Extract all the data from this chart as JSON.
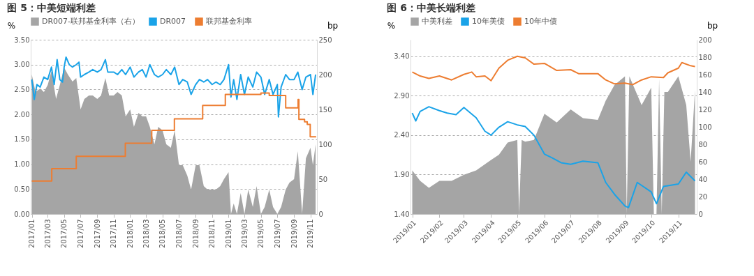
{
  "chart_data": [
    {
      "type": "line",
      "title": "图 5：中美短端利差",
      "ylabel": "%",
      "y2label": "bp",
      "legend": "top",
      "grid": "y",
      "xlim": [
        "2016-12-28",
        "2019-11-25"
      ],
      "xticks": [
        {
          "value": "2017-01-01",
          "label": "2017/01"
        },
        {
          "value": "2017-03-01",
          "label": "2017/03"
        },
        {
          "value": "2017-05-01",
          "label": "2017/05"
        },
        {
          "value": "2017-07-01",
          "label": "2017/07"
        },
        {
          "value": "2017-09-01",
          "label": "2017/09"
        },
        {
          "value": "2017-11-01",
          "label": "2017/11"
        },
        {
          "value": "2018-01-01",
          "label": "2018/01"
        },
        {
          "value": "2018-03-01",
          "label": "2018/03"
        },
        {
          "value": "2018-05-01",
          "label": "2018/05"
        },
        {
          "value": "2018-07-01",
          "label": "2018/07"
        },
        {
          "value": "2018-09-01",
          "label": "2018/09"
        },
        {
          "value": "2018-11-01",
          "label": "2018/11"
        },
        {
          "value": "2019-01-01",
          "label": "2019/01"
        },
        {
          "value": "2019-03-01",
          "label": "2019/03"
        },
        {
          "value": "2019-05-01",
          "label": "2019/05"
        },
        {
          "value": "2019-07-01",
          "label": "2019/07"
        },
        {
          "value": "2019-09-01",
          "label": "2019/09"
        },
        {
          "value": "2019-11-01",
          "label": "2019/11"
        }
      ],
      "ylim": [
        0,
        3.5
      ],
      "yticks": [
        {
          "value": 0,
          "label": "0.00"
        },
        {
          "value": 0.5,
          "label": "0.50"
        },
        {
          "value": 1,
          "label": "1.00"
        },
        {
          "value": 1.5,
          "label": "1.50"
        },
        {
          "value": 2,
          "label": "2.00"
        },
        {
          "value": 2.5,
          "label": "2.50"
        },
        {
          "value": 3,
          "label": "3.00"
        },
        {
          "value": 3.5,
          "label": "3.50"
        }
      ],
      "y2lim": [
        0,
        250
      ],
      "y2ticks": [
        0,
        50,
        100,
        150,
        200,
        250
      ],
      "series": [
        {
          "name": "DR007-联邦基金利率（右）",
          "type": "area",
          "axis": "y2",
          "color": "#a5a5a5",
          "x": [
            "2017-01-01",
            "2017-01-15",
            "2017-02-01",
            "2017-02-15",
            "2017-03-01",
            "2017-03-15",
            "2017-04-01",
            "2017-04-15",
            "2017-05-01",
            "2017-05-15",
            "2017-06-01",
            "2017-06-15",
            "2017-07-01",
            "2017-07-15",
            "2017-08-01",
            "2017-08-15",
            "2017-09-01",
            "2017-09-15",
            "2017-10-01",
            "2017-10-15",
            "2017-11-01",
            "2017-11-15",
            "2017-12-01",
            "2017-12-15",
            "2018-01-01",
            "2018-01-15",
            "2018-02-01",
            "2018-02-15",
            "2018-03-01",
            "2018-03-15",
            "2018-04-01",
            "2018-04-15",
            "2018-05-01",
            "2018-05-15",
            "2018-06-01",
            "2018-06-15",
            "2018-07-01",
            "2018-07-15",
            "2018-08-01",
            "2018-08-15",
            "2018-09-01",
            "2018-09-15",
            "2018-10-01",
            "2018-10-15",
            "2018-11-01",
            "2018-11-15",
            "2018-12-01",
            "2018-12-15",
            "2019-01-01",
            "2019-01-10",
            "2019-01-20",
            "2019-02-01",
            "2019-02-15",
            "2019-03-01",
            "2019-03-15",
            "2019-04-01",
            "2019-04-15",
            "2019-05-01",
            "2019-05-15",
            "2019-06-01",
            "2019-06-15",
            "2019-07-01",
            "2019-07-15",
            "2019-08-01",
            "2019-08-15",
            "2019-09-01",
            "2019-09-15",
            "2019-10-01",
            "2019-10-15",
            "2019-11-01",
            "2019-11-10",
            "2019-11-20"
          ],
          "values": [
            200,
            175,
            180,
            175,
            185,
            205,
            165,
            185,
            210,
            200,
            190,
            195,
            150,
            165,
            170,
            170,
            165,
            170,
            195,
            170,
            170,
            175,
            170,
            140,
            150,
            125,
            145,
            140,
            140,
            125,
            100,
            125,
            120,
            100,
            95,
            120,
            70,
            70,
            55,
            35,
            70,
            70,
            40,
            35,
            35,
            35,
            40,
            50,
            60,
            0,
            15,
            0,
            30,
            0,
            35,
            10,
            40,
            0,
            10,
            35,
            10,
            0,
            10,
            35,
            45,
            50,
            90,
            0,
            80,
            95,
            70,
            100
          ]
        },
        {
          "name": "DR007",
          "color": "#1aa3e8",
          "x": [
            "2017-01-01",
            "2017-01-10",
            "2017-01-20",
            "2017-02-01",
            "2017-02-15",
            "2017-03-01",
            "2017-03-15",
            "2017-03-25",
            "2017-04-05",
            "2017-04-15",
            "2017-04-25",
            "2017-05-01",
            "2017-05-08",
            "2017-05-20",
            "2017-06-01",
            "2017-06-15",
            "2017-06-25",
            "2017-07-01",
            "2017-07-15",
            "2017-08-01",
            "2017-08-15",
            "2017-09-01",
            "2017-09-15",
            "2017-10-01",
            "2017-10-10",
            "2017-11-01",
            "2017-11-15",
            "2017-12-01",
            "2017-12-15",
            "2018-01-01",
            "2018-01-15",
            "2018-02-01",
            "2018-02-15",
            "2018-03-01",
            "2018-03-15",
            "2018-04-01",
            "2018-04-15",
            "2018-05-01",
            "2018-05-15",
            "2018-06-01",
            "2018-06-15",
            "2018-07-01",
            "2018-07-15",
            "2018-08-01",
            "2018-08-15",
            "2018-09-01",
            "2018-09-15",
            "2018-10-01",
            "2018-10-15",
            "2018-11-01",
            "2018-11-15",
            "2018-12-01",
            "2018-12-15",
            "2019-01-01",
            "2019-01-10",
            "2019-01-20",
            "2019-02-01",
            "2019-02-15",
            "2019-03-01",
            "2019-03-15",
            "2019-04-01",
            "2019-04-15",
            "2019-05-01",
            "2019-05-15",
            "2019-06-01",
            "2019-06-15",
            "2019-07-01",
            "2019-07-05",
            "2019-07-15",
            "2019-08-01",
            "2019-08-15",
            "2019-09-01",
            "2019-09-15",
            "2019-10-01",
            "2019-10-15",
            "2019-11-01",
            "2019-11-10",
            "2019-11-20"
          ],
          "values": [
            2.7,
            2.3,
            2.6,
            2.55,
            2.75,
            2.7,
            2.95,
            2.6,
            3.1,
            2.7,
            2.65,
            2.95,
            3.15,
            3.0,
            2.95,
            3.0,
            3.05,
            2.75,
            2.8,
            2.85,
            2.9,
            2.85,
            2.9,
            3.1,
            2.85,
            2.85,
            2.8,
            2.9,
            2.8,
            2.95,
            2.75,
            2.85,
            2.9,
            2.75,
            3.0,
            2.8,
            2.75,
            2.8,
            2.9,
            2.8,
            2.95,
            2.6,
            2.7,
            2.65,
            2.4,
            2.6,
            2.7,
            2.65,
            2.7,
            2.6,
            2.65,
            2.6,
            2.7,
            3.0,
            2.35,
            2.7,
            2.3,
            2.8,
            2.4,
            2.75,
            2.55,
            2.85,
            2.75,
            2.4,
            2.7,
            2.4,
            2.6,
            1.95,
            2.55,
            2.8,
            2.7,
            2.7,
            2.85,
            2.5,
            2.75,
            2.8,
            2.4,
            2.8
          ]
        },
        {
          "name": "联邦基金利率",
          "type": "step",
          "color": "#ed7d31",
          "x": [
            "2017-01-01",
            "2017-03-16",
            "2017-06-15",
            "2017-12-14",
            "2018-03-22",
            "2018-06-14",
            "2018-09-27",
            "2018-12-20",
            "2019-05-01",
            "2019-06-01",
            "2019-08-01",
            "2019-09-16",
            "2019-09-19",
            "2019-10-10",
            "2019-10-20",
            "2019-10-31",
            "2019-11-22"
          ],
          "values": [
            0.66,
            0.91,
            1.16,
            1.42,
            1.68,
            1.91,
            2.18,
            2.4,
            2.43,
            2.38,
            2.13,
            2.3,
            1.9,
            1.85,
            1.8,
            1.55,
            1.55
          ]
        }
      ]
    },
    {
      "type": "line",
      "title": "图 6：中美长端利差",
      "ylabel": "%",
      "y2label": "bp",
      "legend": "top",
      "grid": "y",
      "xlim": [
        "2018-12-30",
        "2019-11-22"
      ],
      "xticks": [
        {
          "value": "2019-01-01",
          "label": "2019/01"
        },
        {
          "value": "2019-02-01",
          "label": "2019/02"
        },
        {
          "value": "2019-03-01",
          "label": "2019/03"
        },
        {
          "value": "2019-04-01",
          "label": "2019/04"
        },
        {
          "value": "2019-05-01",
          "label": "2019/05"
        },
        {
          "value": "2019-06-01",
          "label": "2019/06"
        },
        {
          "value": "2019-07-01",
          "label": "2019/07"
        },
        {
          "value": "2019-08-01",
          "label": "2019/08"
        },
        {
          "value": "2019-09-01",
          "label": "2019/09"
        },
        {
          "value": "2019-10-01",
          "label": "2019/10"
        },
        {
          "value": "2019-11-01",
          "label": "2019/11"
        }
      ],
      "ylim": [
        1.4,
        3.61
      ],
      "yticks": [
        {
          "value": 1.4,
          "label": "1.40"
        },
        {
          "value": 1.9,
          "label": "1.90"
        },
        {
          "value": 2.4,
          "label": "2.40"
        },
        {
          "value": 2.9,
          "label": "2.90"
        },
        {
          "value": 3.4,
          "label": "3.40"
        }
      ],
      "y2lim": [
        0,
        200
      ],
      "y2ticks": [
        0,
        20,
        40,
        60,
        80,
        100,
        120,
        140,
        160,
        180,
        200
      ],
      "series": [
        {
          "name": "中美利差",
          "type": "area",
          "axis": "y2",
          "color": "#a5a5a5",
          "x": [
            "2019-01-01",
            "2019-01-10",
            "2019-01-20",
            "2019-02-01",
            "2019-02-15",
            "2019-03-01",
            "2019-03-15",
            "2019-04-01",
            "2019-04-10",
            "2019-04-20",
            "2019-05-01",
            "2019-05-03",
            "2019-05-06",
            "2019-05-10",
            "2019-05-20",
            "2019-06-01",
            "2019-06-15",
            "2019-07-01",
            "2019-07-15",
            "2019-08-01",
            "2019-08-10",
            "2019-08-20",
            "2019-09-01",
            "2019-09-03",
            "2019-09-06",
            "2019-09-20",
            "2019-10-01",
            "2019-10-04",
            "2019-10-07",
            "2019-10-10",
            "2019-10-13",
            "2019-10-16",
            "2019-10-20",
            "2019-11-01",
            "2019-11-10",
            "2019-11-15",
            "2019-11-20"
          ],
          "values": [
            50,
            38,
            30,
            38,
            38,
            45,
            50,
            62,
            68,
            82,
            85,
            0,
            85,
            83,
            85,
            115,
            105,
            120,
            110,
            108,
            130,
            148,
            158,
            0,
            158,
            125,
            145,
            0,
            0,
            155,
            0,
            140,
            140,
            158,
            125,
            60,
            142
          ]
        },
        {
          "name": "10年美债",
          "color": "#1aa3e8",
          "x": [
            "2019-01-01",
            "2019-01-05",
            "2019-01-10",
            "2019-01-20",
            "2019-02-01",
            "2019-02-10",
            "2019-02-20",
            "2019-03-01",
            "2019-03-15",
            "2019-03-25",
            "2019-04-01",
            "2019-04-10",
            "2019-04-20",
            "2019-05-01",
            "2019-05-10",
            "2019-05-20",
            "2019-06-01",
            "2019-06-10",
            "2019-06-20",
            "2019-07-01",
            "2019-07-15",
            "2019-08-01",
            "2019-08-10",
            "2019-08-20",
            "2019-09-01",
            "2019-09-05",
            "2019-09-15",
            "2019-10-01",
            "2019-10-07",
            "2019-10-15",
            "2019-11-01",
            "2019-11-10",
            "2019-11-20"
          ],
          "values": [
            2.68,
            2.58,
            2.7,
            2.76,
            2.71,
            2.68,
            2.66,
            2.75,
            2.62,
            2.45,
            2.4,
            2.5,
            2.57,
            2.53,
            2.51,
            2.4,
            2.16,
            2.11,
            2.05,
            2.03,
            2.07,
            2.05,
            1.8,
            1.65,
            1.5,
            1.48,
            1.8,
            1.68,
            1.53,
            1.75,
            1.78,
            1.93,
            1.82
          ]
        },
        {
          "name": "10年中债",
          "color": "#ed7d31",
          "x": [
            "2019-01-01",
            "2019-01-10",
            "2019-01-20",
            "2019-02-01",
            "2019-02-15",
            "2019-03-01",
            "2019-03-10",
            "2019-03-15",
            "2019-03-25",
            "2019-04-01",
            "2019-04-10",
            "2019-04-20",
            "2019-05-01",
            "2019-05-10",
            "2019-05-20",
            "2019-06-01",
            "2019-06-15",
            "2019-07-01",
            "2019-07-10",
            "2019-08-01",
            "2019-08-10",
            "2019-08-20",
            "2019-09-01",
            "2019-09-10",
            "2019-09-20",
            "2019-10-01",
            "2019-10-15",
            "2019-10-20",
            "2019-11-01",
            "2019-11-05",
            "2019-11-15",
            "2019-11-20"
          ],
          "values": [
            3.2,
            3.15,
            3.12,
            3.15,
            3.1,
            3.17,
            3.2,
            3.14,
            3.15,
            3.09,
            3.25,
            3.35,
            3.4,
            3.38,
            3.3,
            3.31,
            3.22,
            3.23,
            3.18,
            3.18,
            3.1,
            3.05,
            3.06,
            3.04,
            3.1,
            3.14,
            3.13,
            3.19,
            3.25,
            3.32,
            3.28,
            3.27
          ]
        }
      ]
    }
  ]
}
